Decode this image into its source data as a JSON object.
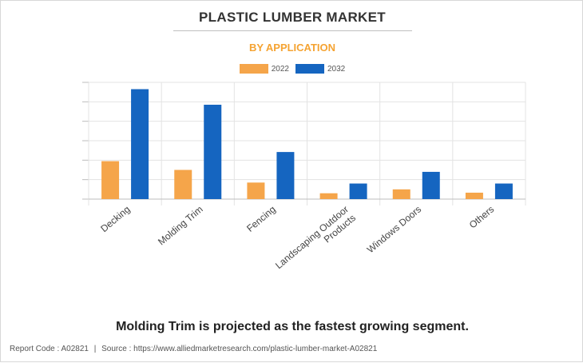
{
  "header": {
    "title": "PLASTIC LUMBER MARKET",
    "subtitle": "BY APPLICATION"
  },
  "caption": "Molding Trim is projected as the fastest growing segment.",
  "footer": {
    "report_code": "Report Code : A02821",
    "separator": "|",
    "source": "Source : https://www.alliedmarketresearch.com/plastic-lumber-market-A02821"
  },
  "colors": {
    "series_2022": "#f5a54a",
    "series_2032": "#1565c0",
    "grid": "#e3e3e3",
    "axis": "#bdbdbd",
    "subtitle": "#f5a332"
  },
  "chart_data": {
    "type": "bar",
    "categories": [
      [
        "Decking"
      ],
      [
        "Molding Trim"
      ],
      [
        "Fencing"
      ],
      [
        "Landscaping Outdoor",
        "Products"
      ],
      [
        "Windows Doors"
      ],
      [
        "Others"
      ]
    ],
    "series": [
      {
        "name": "2022",
        "values": [
          1.95,
          1.5,
          0.85,
          0.3,
          0.5,
          0.33
        ]
      },
      {
        "name": "2032",
        "values": [
          5.65,
          4.85,
          2.42,
          0.8,
          1.4,
          0.8
        ]
      }
    ],
    "ylim": [
      0,
      6
    ],
    "y_grid_step": 1,
    "grid": true,
    "y_tick_labels_shown": false,
    "legend_position": "top-center"
  }
}
